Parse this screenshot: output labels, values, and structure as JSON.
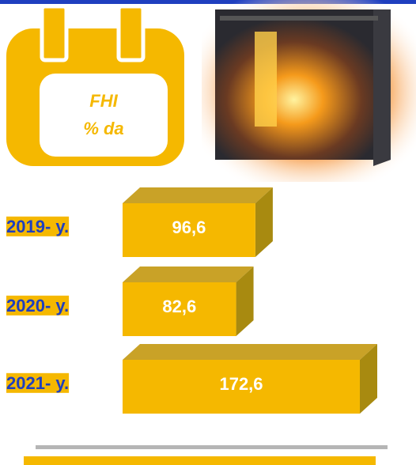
{
  "chart_data": {
    "type": "bar",
    "calendar_lines": [
      "FHI",
      "% da"
    ],
    "categories": [
      "2019- y.",
      "2020- y.",
      "2021- y."
    ],
    "values": [
      96.6,
      82.6,
      172.6
    ],
    "value_labels": [
      "96,6",
      "82,6",
      "172,6"
    ],
    "color": "#f5b800"
  }
}
